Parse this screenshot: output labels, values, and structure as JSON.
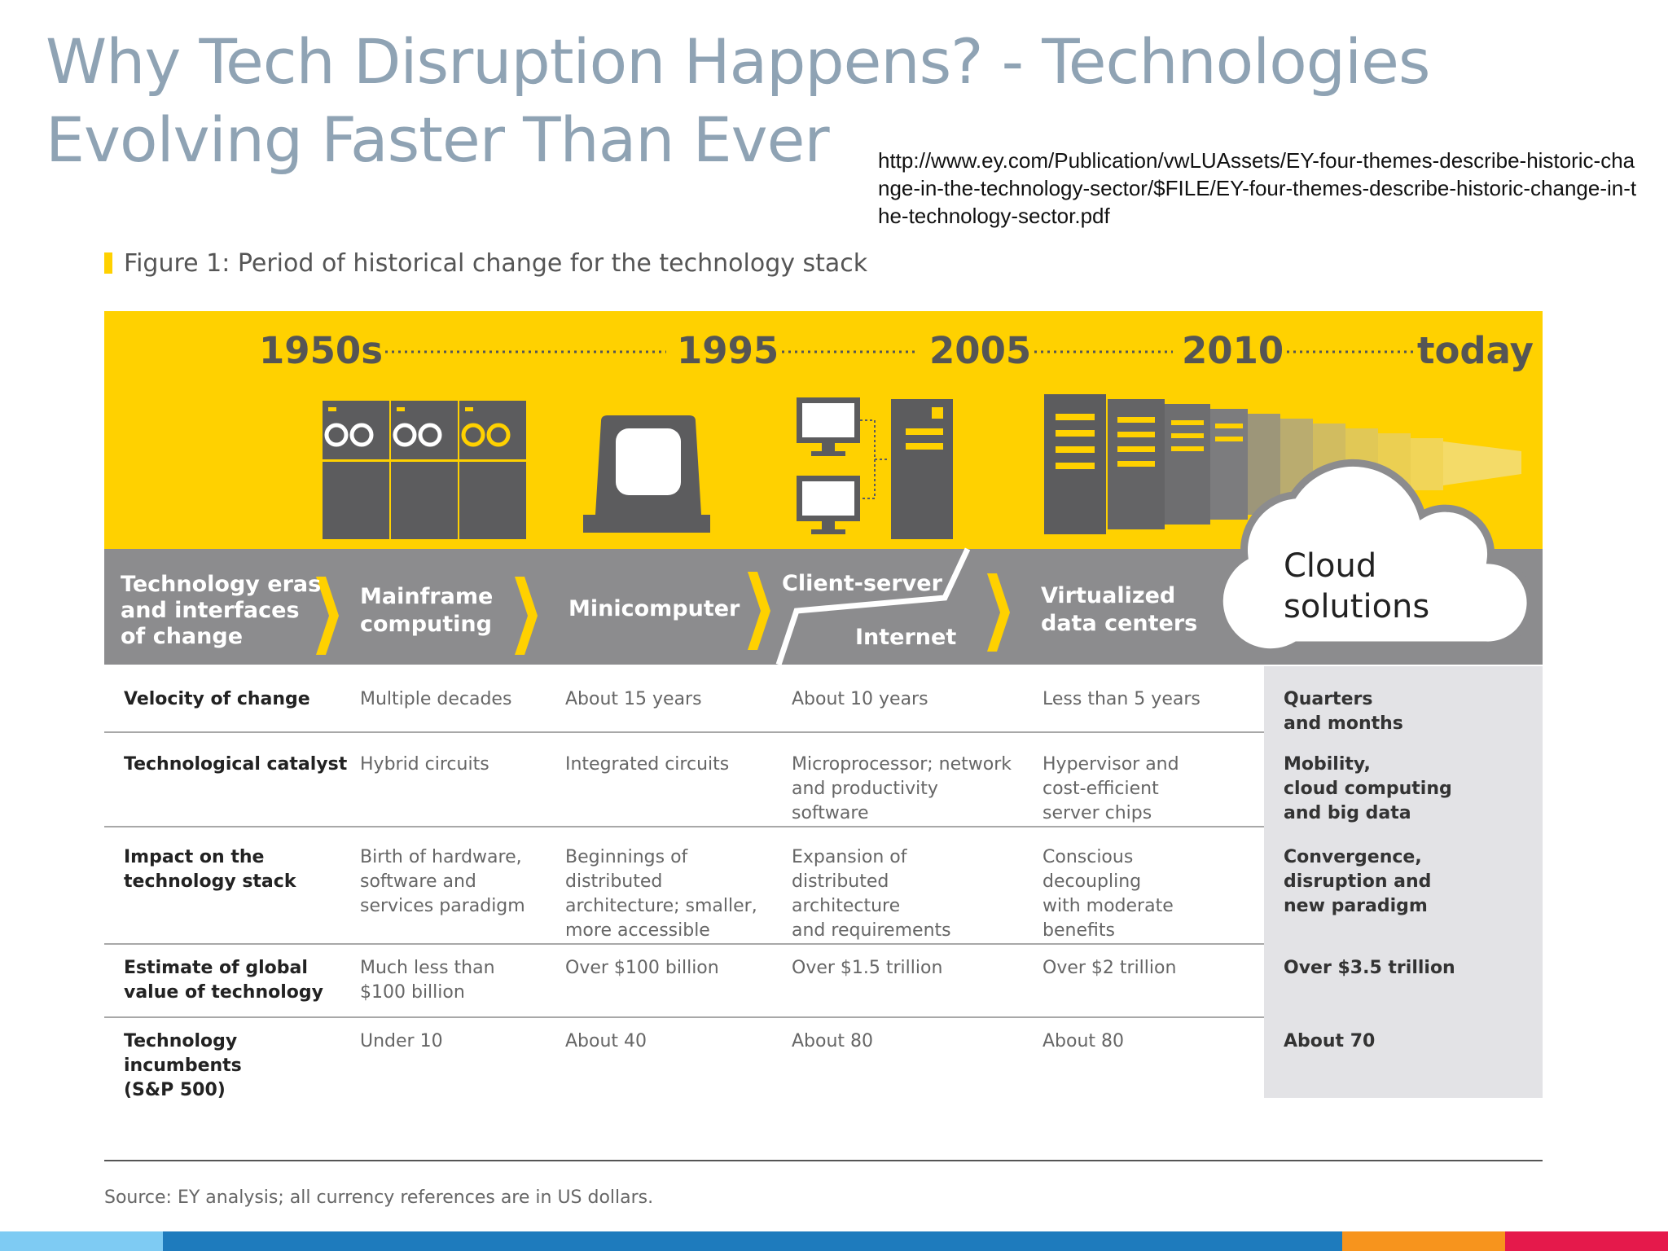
{
  "slide": {
    "title_line1": "Why Tech Disruption Happens? - Technologies",
    "title_line2": "Evolving Faster Than Ever",
    "source_url": "http://www.ey.com/Publication/vwLUAssets/EY-four-themes-describe-historic-change-in-the-technology-sector/$FILE/EY-four-themes-describe-historic-change-in-the-technology-sector.pdf"
  },
  "figure": {
    "caption": "Figure 1: Period of historical change for the technology stack",
    "years": [
      "1950s",
      "1995",
      "2005",
      "2010",
      "today"
    ],
    "eras": {
      "header_lines": [
        "Technology eras",
        "and interfaces",
        "of change"
      ],
      "mainframe_lines": [
        "Mainframe",
        "computing"
      ],
      "minicomputer": "Minicomputer",
      "client_server": "Client-server",
      "internet": "Internet",
      "virtualized_lines": [
        "Virtualized",
        "data centers"
      ],
      "cloud_lines": [
        "Cloud",
        "solutions"
      ]
    },
    "rows": [
      {
        "label": "Velocity of change",
        "cells": [
          "Multiple decades",
          "About 15 years",
          "About 10 years",
          "Less than 5 years",
          "Quarters\nand months"
        ]
      },
      {
        "label": "Technological catalyst",
        "cells": [
          "Hybrid circuits",
          "Integrated circuits",
          "Microprocessor; network\nand productivity\nsoftware",
          "Hypervisor and\ncost-efficient\nserver chips",
          "Mobility,\ncloud computing\nand big data"
        ]
      },
      {
        "label": "Impact on the\ntechnology stack",
        "cells": [
          "Birth of hardware,\nsoftware and\nservices paradigm",
          "Beginnings of\ndistributed\narchitecture; smaller,\nmore accessible",
          "Expansion of\ndistributed\narchitecture\nand requirements",
          "Conscious\ndecoupling\nwith moderate\nbenefits",
          "Convergence,\ndisruption and\nnew paradigm"
        ]
      },
      {
        "label": "Estimate of global\nvalue of technology",
        "cells": [
          "Much less than\n$100 billion",
          "Over $100 billion",
          "Over $1.5 trillion",
          "Over $2 trillion",
          "Over $3.5 trillion"
        ]
      },
      {
        "label": "Technology incumbents\n(S&P 500)",
        "cells": [
          "Under 10",
          "About 40",
          "About 80",
          "About 80",
          "About 70"
        ]
      }
    ],
    "source_note": "Source: EY analysis; all currency references are in US dollars."
  },
  "colors": {
    "title": "#8fa3b4",
    "banner_yellow": "#ffd100",
    "banner_gray": "#8c8c8e",
    "icon_gray": "#5c5c5e",
    "highlight_column": "#e3e3e6",
    "footer_bar": [
      "#7ecbf3",
      "#1e7bbd",
      "#f7941d",
      "#e5194b"
    ]
  },
  "icons": [
    "mainframe-icon",
    "minicomputer-icon",
    "client-server-icon",
    "server-rack-icon",
    "cloud-icon"
  ]
}
